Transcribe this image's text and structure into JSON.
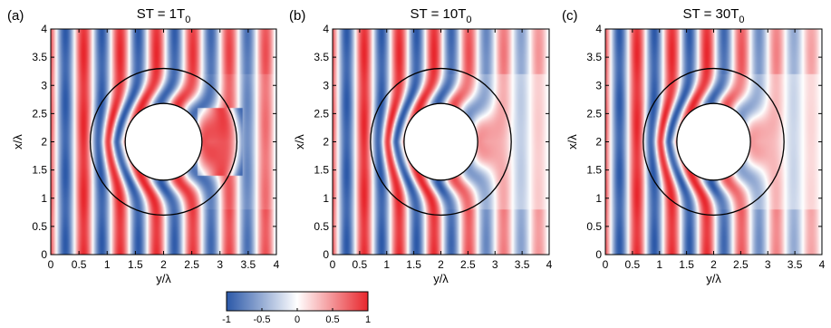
{
  "chart_data": [
    {
      "type": "heatmap",
      "panel_label": "(a)",
      "title_main": "ST = 1T",
      "title_sub": "0",
      "xlabel": "y/λ",
      "ylabel": "x/λ",
      "xlim": [
        0,
        4
      ],
      "ylim": [
        0,
        4
      ],
      "xticks": [
        "0",
        "0.5",
        "1",
        "1.5",
        "2",
        "2.5",
        "3",
        "3.5",
        "4"
      ],
      "yticks": [
        "0",
        "0.5",
        "1",
        "1.5",
        "2",
        "2.5",
        "3",
        "3.5",
        "4"
      ],
      "cloak_center": [
        2,
        2
      ],
      "inner_radius": 0.68,
      "outer_radius": 1.3
    },
    {
      "type": "heatmap",
      "panel_label": "(b)",
      "title_main": "ST = 10T",
      "title_sub": "0",
      "xlabel": "y/λ",
      "ylabel": "x/λ",
      "xlim": [
        0,
        4
      ],
      "ylim": [
        0,
        4
      ],
      "xticks": [
        "0",
        "0.5",
        "1",
        "1.5",
        "2",
        "2.5",
        "3",
        "3.5",
        "4"
      ],
      "yticks": [
        "0",
        "0.5",
        "1",
        "1.5",
        "2",
        "2.5",
        "3",
        "3.5",
        "4"
      ],
      "cloak_center": [
        2,
        2
      ],
      "inner_radius": 0.68,
      "outer_radius": 1.3
    },
    {
      "type": "heatmap",
      "panel_label": "(c)",
      "title_main": "ST = 30T",
      "title_sub": "0",
      "xlabel": "y/λ",
      "ylabel": "x/λ",
      "xlim": [
        0,
        4
      ],
      "ylim": [
        0,
        4
      ],
      "xticks": [
        "0",
        "0.5",
        "1",
        "1.5",
        "2",
        "2.5",
        "3",
        "3.5",
        "4"
      ],
      "yticks": [
        "0",
        "0.5",
        "1",
        "1.5",
        "2",
        "2.5",
        "3",
        "3.5",
        "4"
      ],
      "cloak_center": [
        2,
        2
      ],
      "inner_radius": 0.68,
      "outer_radius": 1.3
    }
  ],
  "colorbar": {
    "range": [
      -1,
      1
    ],
    "ticks": [
      "-1",
      "-0.5",
      "0",
      "0.5",
      "1"
    ],
    "color_low": "#2b58a8",
    "color_mid": "#ffffff",
    "color_high": "#e8262c"
  }
}
